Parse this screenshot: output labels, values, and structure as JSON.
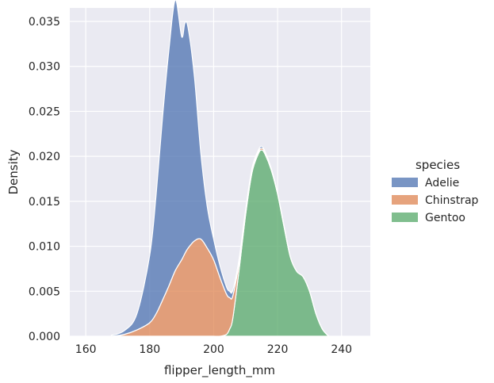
{
  "chart_data": {
    "type": "area",
    "stacked": true,
    "title": "",
    "xlabel": "flipper_length_mm",
    "ylabel": "Density",
    "xlim": [
      155,
      249
    ],
    "ylim": [
      0,
      0.0365
    ],
    "xticks": [
      160,
      180,
      200,
      220,
      240
    ],
    "xtick_labels": [
      "160",
      "180",
      "200",
      "220",
      "240"
    ],
    "yticks": [
      0,
      0.005,
      0.01,
      0.015,
      0.02,
      0.025,
      0.03,
      0.035
    ],
    "ytick_labels": [
      "0.000",
      "0.005",
      "0.010",
      "0.015",
      "0.020",
      "0.025",
      "0.030",
      "0.035"
    ],
    "grid": true,
    "background": "#eaeaf2",
    "legend": {
      "title": "species",
      "placement": "right"
    },
    "x": [
      168,
      172,
      176,
      180,
      182,
      184,
      186,
      188,
      190,
      191,
      192,
      194,
      196,
      198,
      200,
      202,
      204,
      205,
      206,
      208,
      210,
      212,
      214,
      215,
      216,
      218,
      220,
      222,
      224,
      226,
      228,
      230,
      232,
      234,
      236
    ],
    "series": [
      {
        "name": "Gentoo",
        "color": "#55a868",
        "values": [
          0,
          0,
          0,
          0,
          0,
          0,
          0,
          0,
          0,
          0,
          0,
          0,
          0,
          0,
          0,
          0,
          0.0002,
          0.0008,
          0.002,
          0.0075,
          0.0135,
          0.0182,
          0.0203,
          0.0207,
          0.0203,
          0.0185,
          0.0158,
          0.0122,
          0.0088,
          0.0072,
          0.0066,
          0.005,
          0.0025,
          0.0008,
          0
        ]
      },
      {
        "name": "Chinstrap",
        "color": "#dd8452",
        "values": [
          0,
          0.0002,
          0.0007,
          0.0015,
          0.0025,
          0.004,
          0.0056,
          0.0073,
          0.0085,
          0.0092,
          0.0098,
          0.0106,
          0.0108,
          0.0098,
          0.0085,
          0.0065,
          0.0045,
          0.0035,
          0.0025,
          0.0008,
          0.0003,
          0.0002,
          0.0002,
          0.0002,
          0.0002,
          0.0001,
          0.0001,
          0.0001,
          0,
          0,
          0,
          0,
          0,
          0,
          0
        ]
      },
      {
        "name": "Adelie",
        "color": "#4c72b0",
        "values": [
          0.0001,
          0.0004,
          0.0018,
          0.0075,
          0.0132,
          0.0203,
          0.0262,
          0.0301,
          0.0248,
          0.0256,
          0.0245,
          0.0182,
          0.0095,
          0.0046,
          0.0023,
          0.0013,
          0.0008,
          0.0007,
          0.0006,
          0.0004,
          0.0003,
          0.0003,
          0.0002,
          0.0002,
          0.0001,
          0.0001,
          0,
          0,
          0,
          0,
          0,
          0,
          0,
          0,
          0
        ]
      }
    ]
  }
}
